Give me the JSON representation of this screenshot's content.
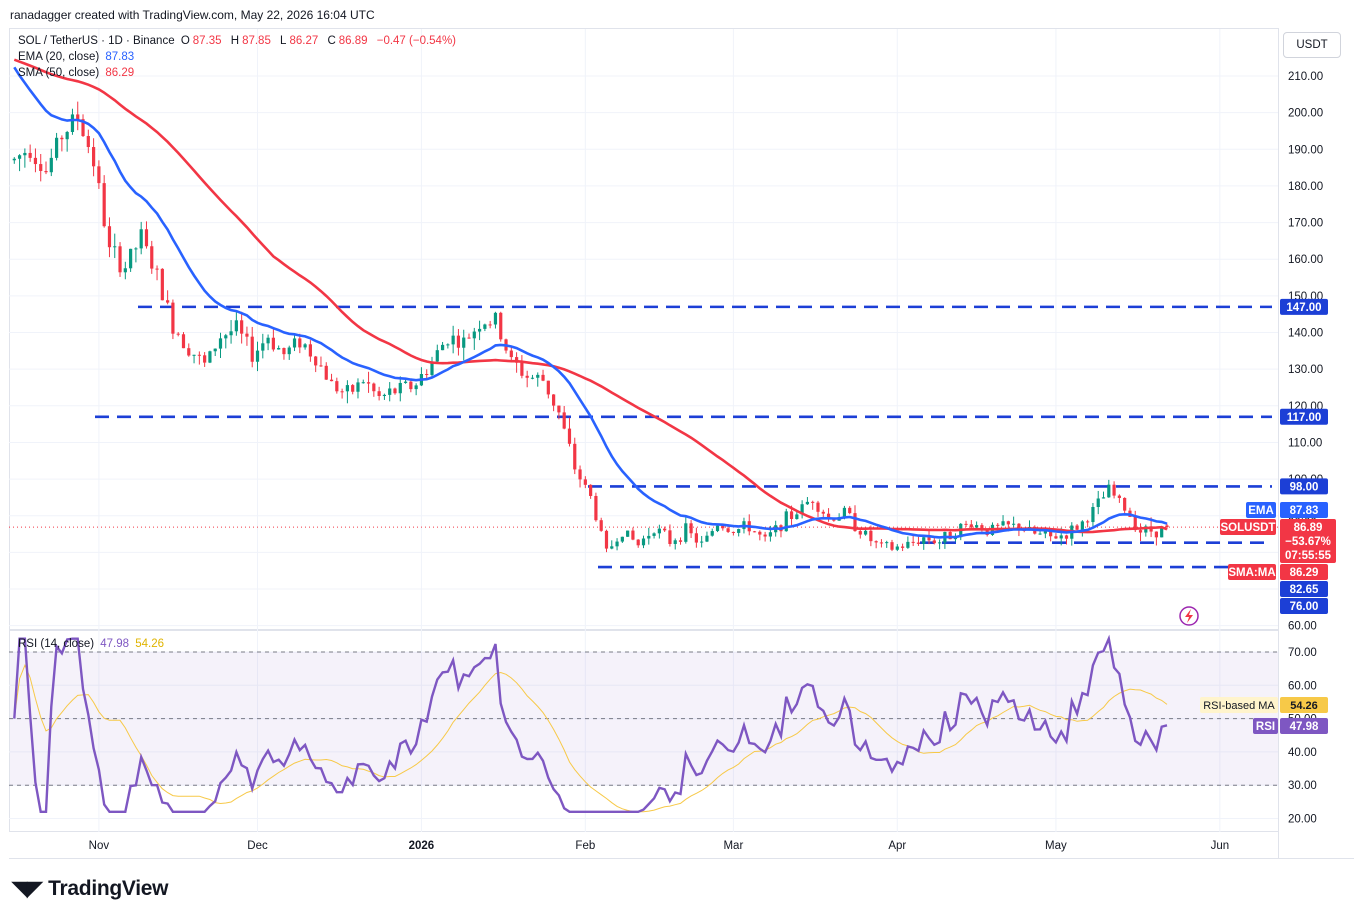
{
  "header": {
    "created_by": "ranadagger created with TradingView.com, May 22, 2026 16:04 UTC"
  },
  "legend": {
    "symbol": "SOL / TetherUS · 1D · Binance",
    "open_label": "O",
    "open": "87.35",
    "high_label": "H",
    "high": "87.85",
    "low_label": "L",
    "low": "86.27",
    "close_label": "C",
    "close": "86.89",
    "change": "−0.47 (−0.54%)",
    "ema_label": "EMA (20, close)",
    "ema_value": "87.83",
    "sma_label": "SMA (50, close)",
    "sma_value": "86.29",
    "rsi_label": "RSI (14, close)",
    "rsi_value": "47.98",
    "rsi_ma_value": "54.26"
  },
  "currency_button": "USDT",
  "price_tags": {
    "p147": "147.00",
    "p117": "117.00",
    "p98": "98.00",
    "ema_tag": "EMA",
    "ema_val": "87.83",
    "sym_tag": "SOLUSDT",
    "sym_val": "86.89",
    "sym_pct": "−53.67%",
    "sym_time": "07:55:55",
    "sma_tag": "SMA:MA",
    "sma_val": "86.29",
    "p8265": "82.65",
    "p76": "76.00",
    "rsi_ma_tag": "RSI-based MA",
    "rsi_ma_val": "54.26",
    "rsi_tag": "RSI",
    "rsi_val": "47.98"
  },
  "logo_text": "TradingView",
  "colors": {
    "up": "#089981",
    "down": "#f23645",
    "ema": "#2962ff",
    "sma": "#f23645",
    "rsi": "#7e57c2",
    "rsi_ma": "#f7c948",
    "level": "#1c3fd6"
  },
  "chart_data": [
    {
      "type": "candlestick",
      "title": "SOL / TetherUS · 1D · Binance",
      "x_ticks": [
        "Nov",
        "Dec",
        "2026",
        "Feb",
        "Mar",
        "Apr",
        "May",
        "Jun"
      ],
      "y_ticks": [
        "210.00",
        "200.00",
        "190.00",
        "180.00",
        "170.00",
        "160.00",
        "150.00",
        "140.00",
        "130.00",
        "120.00",
        "110.00",
        "100.00",
        "90.00",
        "80.00",
        "70.00",
        "60.00"
      ],
      "ylim": [
        60,
        215
      ],
      "horizontal_levels": [
        147,
        117,
        98,
        82.65,
        76
      ],
      "series": [
        {
          "name": "SOLUSDT",
          "close_path": [
            [
              "2025-10-16",
              187
            ],
            [
              "2025-10-19",
              191
            ],
            [
              "2025-10-22",
              184
            ],
            [
              "2025-10-25",
              194
            ],
            [
              "2025-10-28",
              199
            ],
            [
              "2025-10-31",
              187
            ],
            [
              "2025-11-03",
              162
            ],
            [
              "2025-11-06",
              158
            ],
            [
              "2025-11-09",
              166
            ],
            [
              "2025-11-12",
              155
            ],
            [
              "2025-11-15",
              142
            ],
            [
              "2025-11-18",
              136
            ],
            [
              "2025-11-21",
              131
            ],
            [
              "2025-11-24",
              139
            ],
            [
              "2025-11-27",
              141
            ],
            [
              "2025-11-30",
              134
            ],
            [
              "2025-12-03",
              139
            ],
            [
              "2025-12-06",
              134
            ],
            [
              "2025-12-09",
              138
            ],
            [
              "2025-12-12",
              133
            ],
            [
              "2025-12-15",
              126
            ],
            [
              "2025-12-18",
              123
            ],
            [
              "2025-12-21",
              127
            ],
            [
              "2025-12-24",
              122
            ],
            [
              "2025-12-27",
              124
            ],
            [
              "2025-12-31",
              126
            ],
            [
              "2026-01-03",
              132
            ],
            [
              "2026-01-06",
              139
            ],
            [
              "2026-01-09",
              137
            ],
            [
              "2026-01-12",
              143
            ],
            [
              "2026-01-15",
              143
            ],
            [
              "2026-01-18",
              132
            ],
            [
              "2026-01-21",
              128
            ],
            [
              "2026-01-24",
              127
            ],
            [
              "2026-01-27",
              118
            ],
            [
              "2026-01-30",
              103
            ],
            [
              "2026-02-02",
              95
            ],
            [
              "2026-02-05",
              80
            ],
            [
              "2026-02-08",
              86
            ],
            [
              "2026-02-11",
              82
            ],
            [
              "2026-02-14",
              87
            ],
            [
              "2026-02-17",
              83
            ],
            [
              "2026-02-20",
              86
            ],
            [
              "2026-02-23",
              82
            ],
            [
              "2026-02-26",
              88
            ],
            [
              "2026-03-01",
              86
            ],
            [
              "2026-03-04",
              87
            ],
            [
              "2026-03-07",
              83
            ],
            [
              "2026-03-10",
              88
            ],
            [
              "2026-03-13",
              91
            ],
            [
              "2026-03-16",
              95
            ],
            [
              "2026-03-19",
              89
            ],
            [
              "2026-03-22",
              91
            ],
            [
              "2026-03-25",
              86
            ],
            [
              "2026-03-28",
              82
            ],
            [
              "2026-03-31",
              81
            ],
            [
              "2026-04-03",
              82
            ],
            [
              "2026-04-06",
              84
            ],
            [
              "2026-04-09",
              83
            ],
            [
              "2026-04-12",
              86
            ],
            [
              "2026-04-15",
              88
            ],
            [
              "2026-04-18",
              86
            ],
            [
              "2026-04-21",
              87
            ],
            [
              "2026-04-24",
              87
            ],
            [
              "2026-04-27",
              85
            ],
            [
              "2026-04-30",
              84
            ],
            [
              "2026-05-03",
              85
            ],
            [
              "2026-05-06",
              88
            ],
            [
              "2026-05-09",
              93
            ],
            [
              "2026-05-11",
              97
            ],
            [
              "2026-05-14",
              92
            ],
            [
              "2026-05-17",
              86
            ],
            [
              "2026-05-20",
              86
            ],
            [
              "2026-05-22",
              86.89
            ]
          ]
        },
        {
          "name": "EMA (20, close)",
          "last": 87.83
        },
        {
          "name": "SMA (50, close)",
          "last": 86.29
        }
      ]
    },
    {
      "type": "line",
      "title": "RSI (14, close)",
      "y_ticks": [
        "70.00",
        "60.00",
        "50.00",
        "40.00",
        "30.00",
        "20.00"
      ],
      "ylim": [
        18,
        74
      ],
      "guide_lines": [
        70,
        50,
        30
      ],
      "series": [
        {
          "name": "RSI",
          "last": 47.98
        },
        {
          "name": "RSI-based MA",
          "last": 54.26
        }
      ]
    }
  ]
}
